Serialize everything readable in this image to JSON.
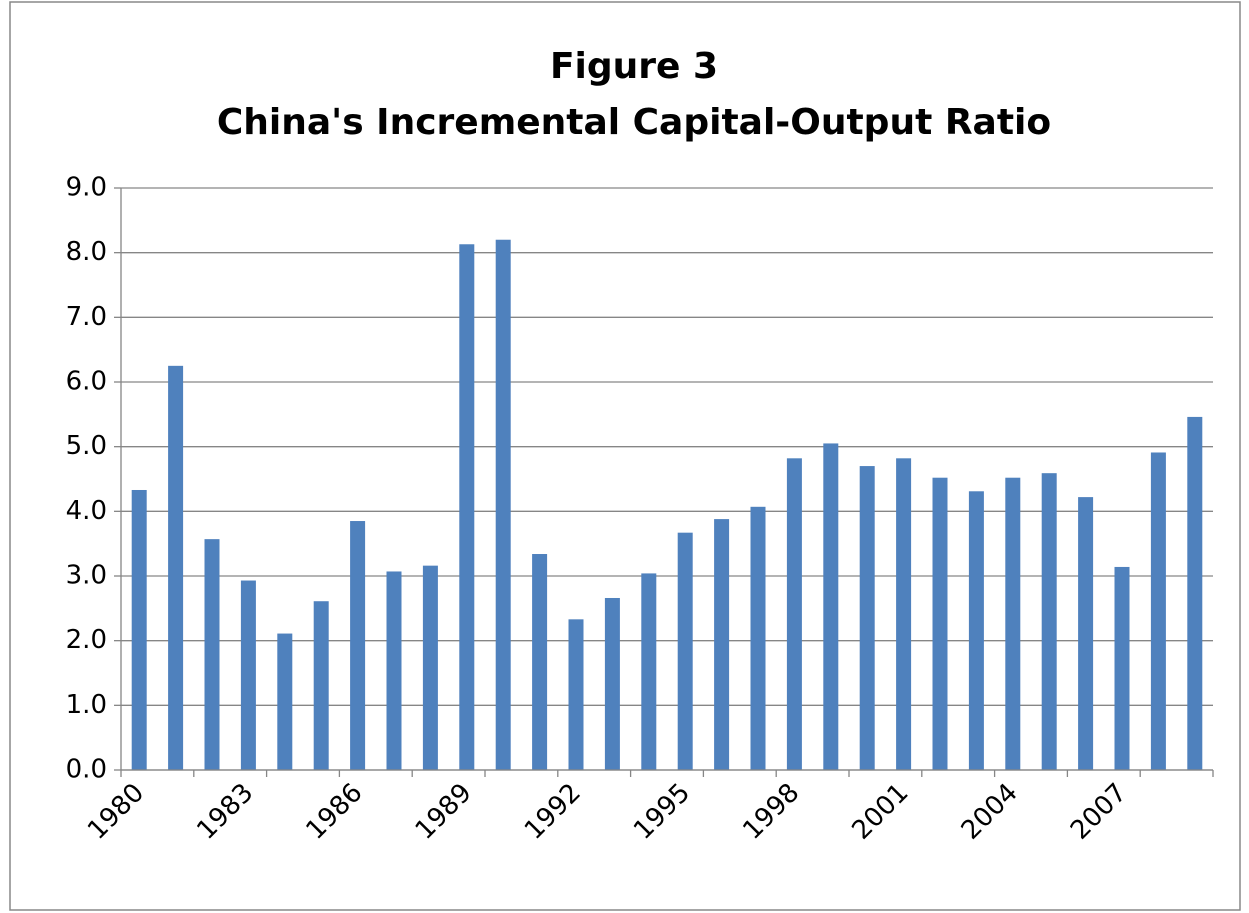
{
  "chart_data": {
    "type": "bar",
    "title": "Figure 3",
    "subtitle": "China's Incremental Capital-Output Ratio",
    "categories": [
      "1980",
      null,
      null,
      "1983",
      null,
      null,
      "1986",
      null,
      null,
      "1989",
      null,
      null,
      "1992",
      null,
      null,
      "1995",
      null,
      null,
      "1998",
      null,
      null,
      "2001",
      null,
      null,
      "2004",
      null,
      null,
      "2007",
      null,
      null
    ],
    "values": [
      4.33,
      6.25,
      3.57,
      2.93,
      2.11,
      2.61,
      3.85,
      3.07,
      3.16,
      8.13,
      8.2,
      3.34,
      2.33,
      2.66,
      3.04,
      3.67,
      3.88,
      4.07,
      4.82,
      5.05,
      4.7,
      4.82,
      4.52,
      4.31,
      4.52,
      4.59,
      4.22,
      3.14,
      4.91,
      5.46
    ],
    "color": "#4f81bd",
    "ylim": [
      0,
      9
    ],
    "yticks": [
      {
        "value": 0,
        "label": "0.0"
      },
      {
        "value": 1,
        "label": "1.0"
      },
      {
        "value": 2,
        "label": "2.0"
      },
      {
        "value": 3,
        "label": "3.0"
      },
      {
        "value": 4,
        "label": "4.0"
      },
      {
        "value": 5,
        "label": "5.0"
      },
      {
        "value": 6,
        "label": "6.0"
      },
      {
        "value": 7,
        "label": "7.0"
      },
      {
        "value": 8,
        "label": "8.0"
      },
      {
        "value": 9,
        "label": "9.0"
      }
    ],
    "grid": true
  }
}
